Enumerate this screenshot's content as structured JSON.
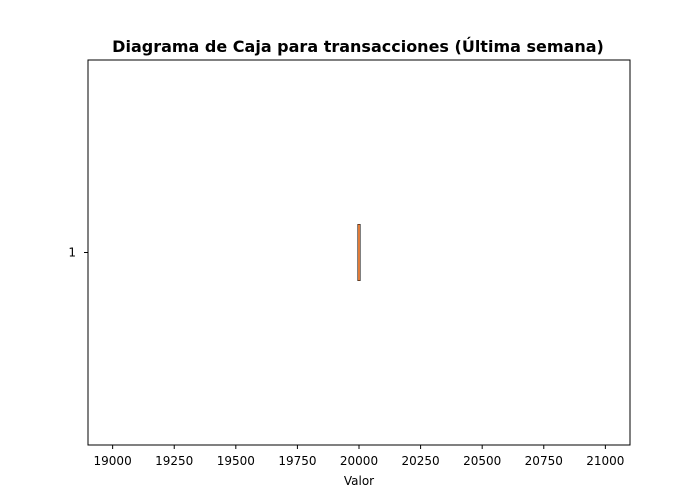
{
  "chart_data": {
    "type": "box",
    "title": "Diagrama de Caja para transacciones (Última semana)",
    "xlabel": "Valor",
    "ylabel": "",
    "xlim": [
      18900,
      21100
    ],
    "x_ticks": [
      19000,
      19250,
      19500,
      19750,
      20000,
      20250,
      20500,
      20750,
      21000
    ],
    "y_tick_labels": [
      "1"
    ],
    "orientation": "horizontal",
    "grid": false,
    "boxes": [
      {
        "category": "1",
        "min": 20000,
        "q1": 20000,
        "median": 20000,
        "q3": 20000,
        "max": 20000
      }
    ],
    "colors": {
      "box_edge": "#000000",
      "median": "#e07b39",
      "frame": "#000000"
    }
  }
}
